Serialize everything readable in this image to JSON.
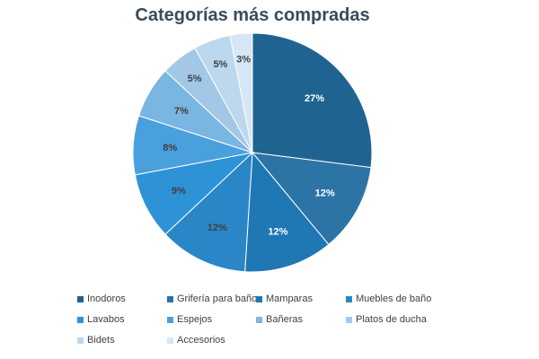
{
  "chart_data": {
    "type": "pie",
    "title": "Categorías más compradas",
    "categories": [
      "Inodoros",
      "Grifería para baño",
      "Mamparas",
      "Muebles de baño",
      "Lavabos",
      "Espejos",
      "Bañeras",
      "Platos de ducha",
      "Bidets",
      "Accesorios"
    ],
    "values": [
      27,
      12,
      12,
      12,
      9,
      8,
      7,
      5,
      5,
      3
    ],
    "labels": [
      "27%",
      "12%",
      "12%",
      "12%",
      "9%",
      "8%",
      "7%",
      "5%",
      "5%",
      "3%"
    ],
    "colors": [
      "#1f6391",
      "#2c74a6",
      "#1f77b4",
      "#2a86c6",
      "#2e93d6",
      "#4aa0dc",
      "#79b6e1",
      "#a2c8e6",
      "#bcd8ee",
      "#d6e6f4"
    ],
    "label_colors": [
      "#ffffff",
      "#ffffff",
      "#ffffff",
      "#404040",
      "#404040",
      "#404040",
      "#404040",
      "#404040",
      "#404040",
      "#404040"
    ],
    "legend_position": "bottom",
    "start_angle_deg": 0,
    "direction": "clockwise"
  }
}
